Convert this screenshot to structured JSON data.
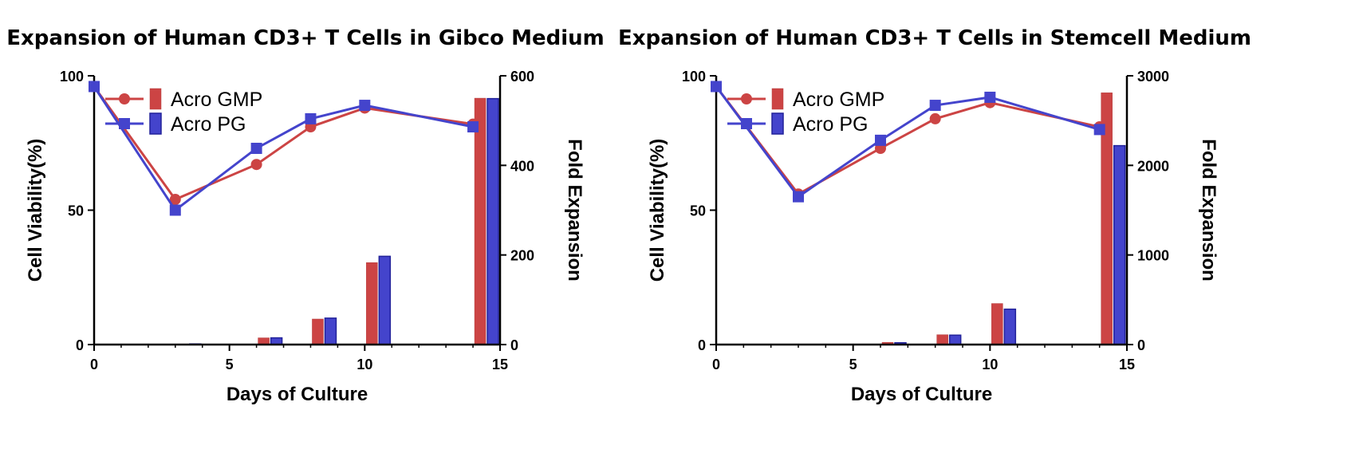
{
  "colors": {
    "gmp": "#cc4444",
    "pg": "#4444cc",
    "gmp_stroke": "#b43b3b",
    "pg_stroke": "#22229a"
  },
  "chart_data": [
    {
      "type": "line+bar",
      "title": "Expansion of Human CD3+ T Cells in Gibco Medium",
      "xlabel": "Days of Culture",
      "ylabel_left": "Cell Viability(%)",
      "ylabel_right": "Fold Expansion",
      "xlim": [
        0,
        15
      ],
      "ylim_left": [
        0,
        100
      ],
      "ylim_right": [
        0,
        600
      ],
      "x_ticks": [
        "0",
        "5",
        "10",
        "15"
      ],
      "y_left_ticks": [
        "0",
        "50",
        "100"
      ],
      "y_right_ticks": [
        "0",
        "200",
        "400",
        "600"
      ],
      "legend": {
        "position": "top-left",
        "entries": [
          "Acro GMP",
          "Acro PG"
        ]
      },
      "line_series": [
        {
          "name": "Acro GMP",
          "x": [
            0,
            3,
            6,
            8,
            10,
            14
          ],
          "y": [
            96,
            54,
            67,
            81,
            88,
            82
          ]
        },
        {
          "name": "Acro PG",
          "x": [
            0,
            3,
            6,
            8,
            10,
            14
          ],
          "y": [
            96,
            50,
            73,
            84,
            89,
            81
          ]
        }
      ],
      "bar_series": [
        {
          "name": "Acro GMP",
          "x": [
            3,
            6,
            8,
            10,
            14
          ],
          "values": [
            1,
            15,
            57,
            183,
            550
          ]
        },
        {
          "name": "Acro PG",
          "x": [
            3,
            6,
            8,
            10,
            14
          ],
          "values": [
            1,
            15,
            59,
            197,
            549
          ]
        }
      ]
    },
    {
      "type": "line+bar",
      "title": "Expansion of Human CD3+ T Cells in Stemcell Medium",
      "xlabel": "Days of Culture",
      "ylabel_left": "Cell Viability(%)",
      "ylabel_right": "Fold Expansion",
      "xlim": [
        0,
        15
      ],
      "ylim_left": [
        0,
        100
      ],
      "ylim_right": [
        0,
        3000
      ],
      "x_ticks": [
        "0",
        "5",
        "10",
        "15"
      ],
      "y_left_ticks": [
        "0",
        "50",
        "100"
      ],
      "y_right_ticks": [
        "0",
        "1000",
        "2000",
        "3000"
      ],
      "legend": {
        "position": "top-left",
        "entries": [
          "Acro GMP",
          "Acro PG"
        ]
      },
      "line_series": [
        {
          "name": "Acro GMP",
          "x": [
            0,
            3,
            6,
            8,
            10,
            14
          ],
          "y": [
            96,
            56,
            73,
            84,
            90,
            81
          ]
        },
        {
          "name": "Acro PG",
          "x": [
            0,
            3,
            6,
            8,
            10,
            14
          ],
          "y": [
            96,
            55,
            76,
            89,
            92,
            80
          ]
        }
      ],
      "bar_series": [
        {
          "name": "Acro GMP",
          "x": [
            6,
            8,
            10,
            14
          ],
          "values": [
            25,
            110,
            458,
            2810
          ]
        },
        {
          "name": "Acro PG",
          "x": [
            6,
            8,
            10,
            14
          ],
          "values": [
            20,
            105,
            395,
            2220
          ]
        }
      ]
    }
  ]
}
